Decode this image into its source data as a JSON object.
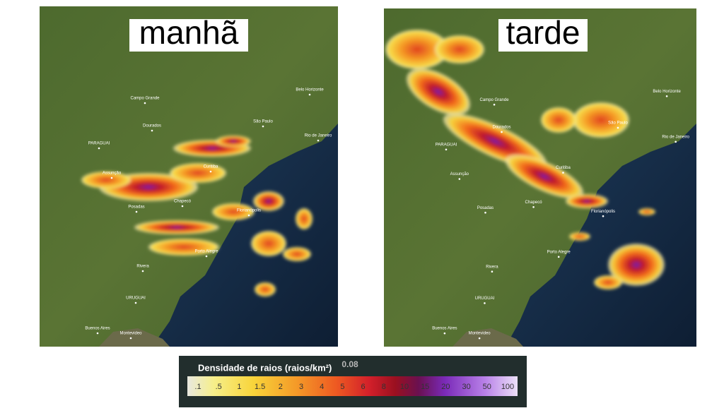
{
  "panels": [
    {
      "title": "manhã",
      "places": [
        "PARAGUAI",
        "Campo Grande",
        "Dourados",
        "Assunção",
        "Posadas",
        "Chapecó",
        "Curitiba",
        "Florianópolis",
        "Porto Alegre",
        "Rivera",
        "URUGUAI",
        "Buenos Aires",
        "Montevideo",
        "São Paulo",
        "Rio de Janeiro",
        "Belo Horizonte"
      ]
    },
    {
      "title": "tarde",
      "places": [
        "PARAGUAI",
        "Campo Grande",
        "Dourados",
        "Assunção",
        "Posadas",
        "Chapecó",
        "Curitiba",
        "Florianópolis",
        "Porto Alegre",
        "Rivera",
        "URUGUAI",
        "Buenos Aires",
        "Montevideo",
        "São Paulo",
        "Rio de Janeiro",
        "Belo Horizonte"
      ]
    }
  ],
  "legend": {
    "title": "Densidade de raios (raios/km²)",
    "background_value": "0.08",
    "ticks": [
      ".1",
      ".5",
      "1",
      "1.5",
      "2",
      "3",
      "4",
      "5",
      "6",
      "8",
      "10",
      "15",
      "20",
      "30",
      "50",
      "100"
    ]
  }
}
